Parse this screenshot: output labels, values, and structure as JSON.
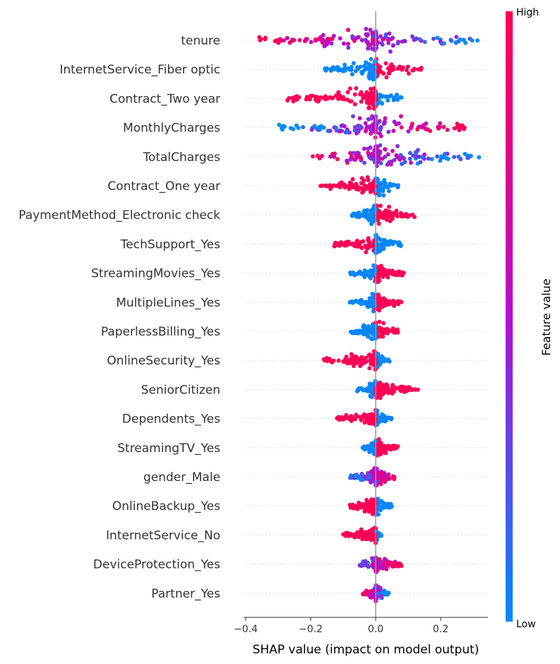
{
  "chart_data": {
    "type": "scatter",
    "subtype": "shap-beeswarm-summary",
    "xlabel": "SHAP value (impact on model output)",
    "xlim": [
      -0.42,
      0.35
    ],
    "xticks": [
      -0.4,
      -0.2,
      0.0,
      0.2
    ],
    "xtick_labels": [
      "−0.4",
      "−0.2",
      "0.0",
      "0.2"
    ],
    "grid": "horizontal dotted row guides",
    "colorbar": {
      "title": "Feature value",
      "high_label": "High",
      "low_label": "Low",
      "high_color": "#ff0052",
      "mid_color": "#b40ed0",
      "low_color": "#008bfb",
      "placement": "right"
    },
    "features": [
      {
        "name": "tenure",
        "min": -0.38,
        "max": 0.32,
        "high_side": "negative",
        "mixed": true,
        "spread": 1.0
      },
      {
        "name": "InternetService_Fiber optic",
        "min": -0.17,
        "max": 0.15,
        "high_side": "positive",
        "mixed": false,
        "spread": 0.9
      },
      {
        "name": "Contract_Two year",
        "min": -0.28,
        "max": 0.09,
        "high_side": "negative",
        "mixed": false,
        "spread": 0.9
      },
      {
        "name": "MonthlyCharges",
        "min": -0.3,
        "max": 0.28,
        "high_side": "positive",
        "mixed": true,
        "spread": 1.0
      },
      {
        "name": "TotalCharges",
        "min": -0.21,
        "max": 0.32,
        "high_side": "negative",
        "mixed": true,
        "spread": 1.0
      },
      {
        "name": "Contract_One year",
        "min": -0.17,
        "max": 0.08,
        "high_side": "negative",
        "mixed": false,
        "spread": 0.85
      },
      {
        "name": "PaymentMethod_Electronic check",
        "min": -0.08,
        "max": 0.12,
        "high_side": "positive",
        "mixed": false,
        "spread": 0.8
      },
      {
        "name": "TechSupport_Yes",
        "min": -0.13,
        "max": 0.08,
        "high_side": "negative",
        "mixed": false,
        "spread": 0.8
      },
      {
        "name": "StreamingMovies_Yes",
        "min": -0.08,
        "max": 0.09,
        "high_side": "positive",
        "mixed": false,
        "spread": 0.8
      },
      {
        "name": "MultipleLines_Yes",
        "min": -0.08,
        "max": 0.08,
        "high_side": "positive",
        "mixed": false,
        "spread": 0.8
      },
      {
        "name": "PaperlessBilling_Yes",
        "min": -0.08,
        "max": 0.07,
        "high_side": "positive",
        "mixed": false,
        "spread": 0.85
      },
      {
        "name": "OnlineSecurity_Yes",
        "min": -0.16,
        "max": 0.05,
        "high_side": "negative",
        "mixed": false,
        "spread": 0.8
      },
      {
        "name": "SeniorCitizen",
        "min": -0.06,
        "max": 0.13,
        "high_side": "positive",
        "mixed": false,
        "spread": 0.75
      },
      {
        "name": "Dependents_Yes",
        "min": -0.12,
        "max": 0.05,
        "high_side": "negative",
        "mixed": false,
        "spread": 0.75
      },
      {
        "name": "StreamingTV_Yes",
        "min": -0.04,
        "max": 0.07,
        "high_side": "positive",
        "mixed": false,
        "spread": 0.75
      },
      {
        "name": "gender_Male",
        "min": -0.08,
        "max": 0.06,
        "high_side": "positive",
        "mixed": true,
        "spread": 0.75
      },
      {
        "name": "OnlineBackup_Yes",
        "min": -0.08,
        "max": 0.05,
        "high_side": "negative",
        "mixed": false,
        "spread": 0.75
      },
      {
        "name": "InternetService_No",
        "min": -0.1,
        "max": 0.02,
        "high_side": "negative",
        "mixed": false,
        "spread": 0.7
      },
      {
        "name": "DeviceProtection_Yes",
        "min": -0.05,
        "max": 0.08,
        "high_side": "positive",
        "mixed": true,
        "spread": 0.7
      },
      {
        "name": "Partner_Yes",
        "min": -0.04,
        "max": 0.04,
        "high_side": "negative",
        "mixed": true,
        "spread": 0.7
      }
    ]
  }
}
